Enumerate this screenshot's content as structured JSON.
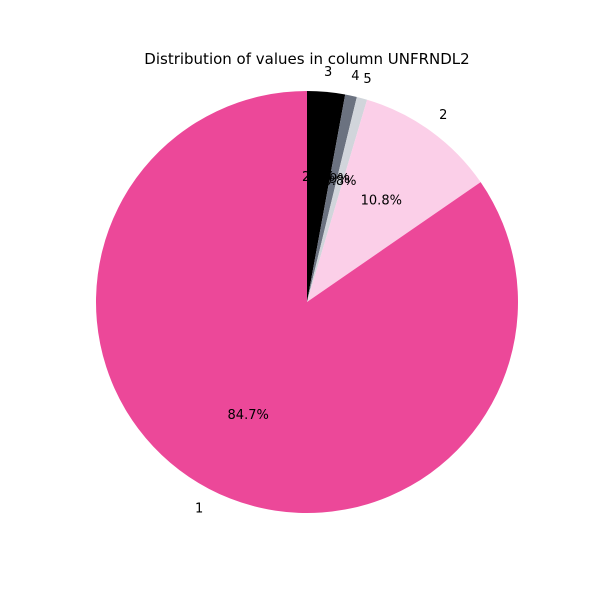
{
  "chart_data": {
    "type": "pie",
    "title": "Distribution of values in column UNFRNDL2",
    "categories": [
      "3",
      "4",
      "5",
      "2",
      "1"
    ],
    "values": [
      2.9,
      0.9,
      0.8,
      10.8,
      84.7
    ],
    "pct_labels": [
      "2.9%",
      "0.9%",
      "0.8%",
      "10.8%",
      "84.7%"
    ],
    "colors": [
      "#000000",
      "#6b7280",
      "#d1d5db",
      "#fbcfe8",
      "#ec4899"
    ],
    "start_angle_deg": 90,
    "direction": "clockwise",
    "legend": "none"
  }
}
